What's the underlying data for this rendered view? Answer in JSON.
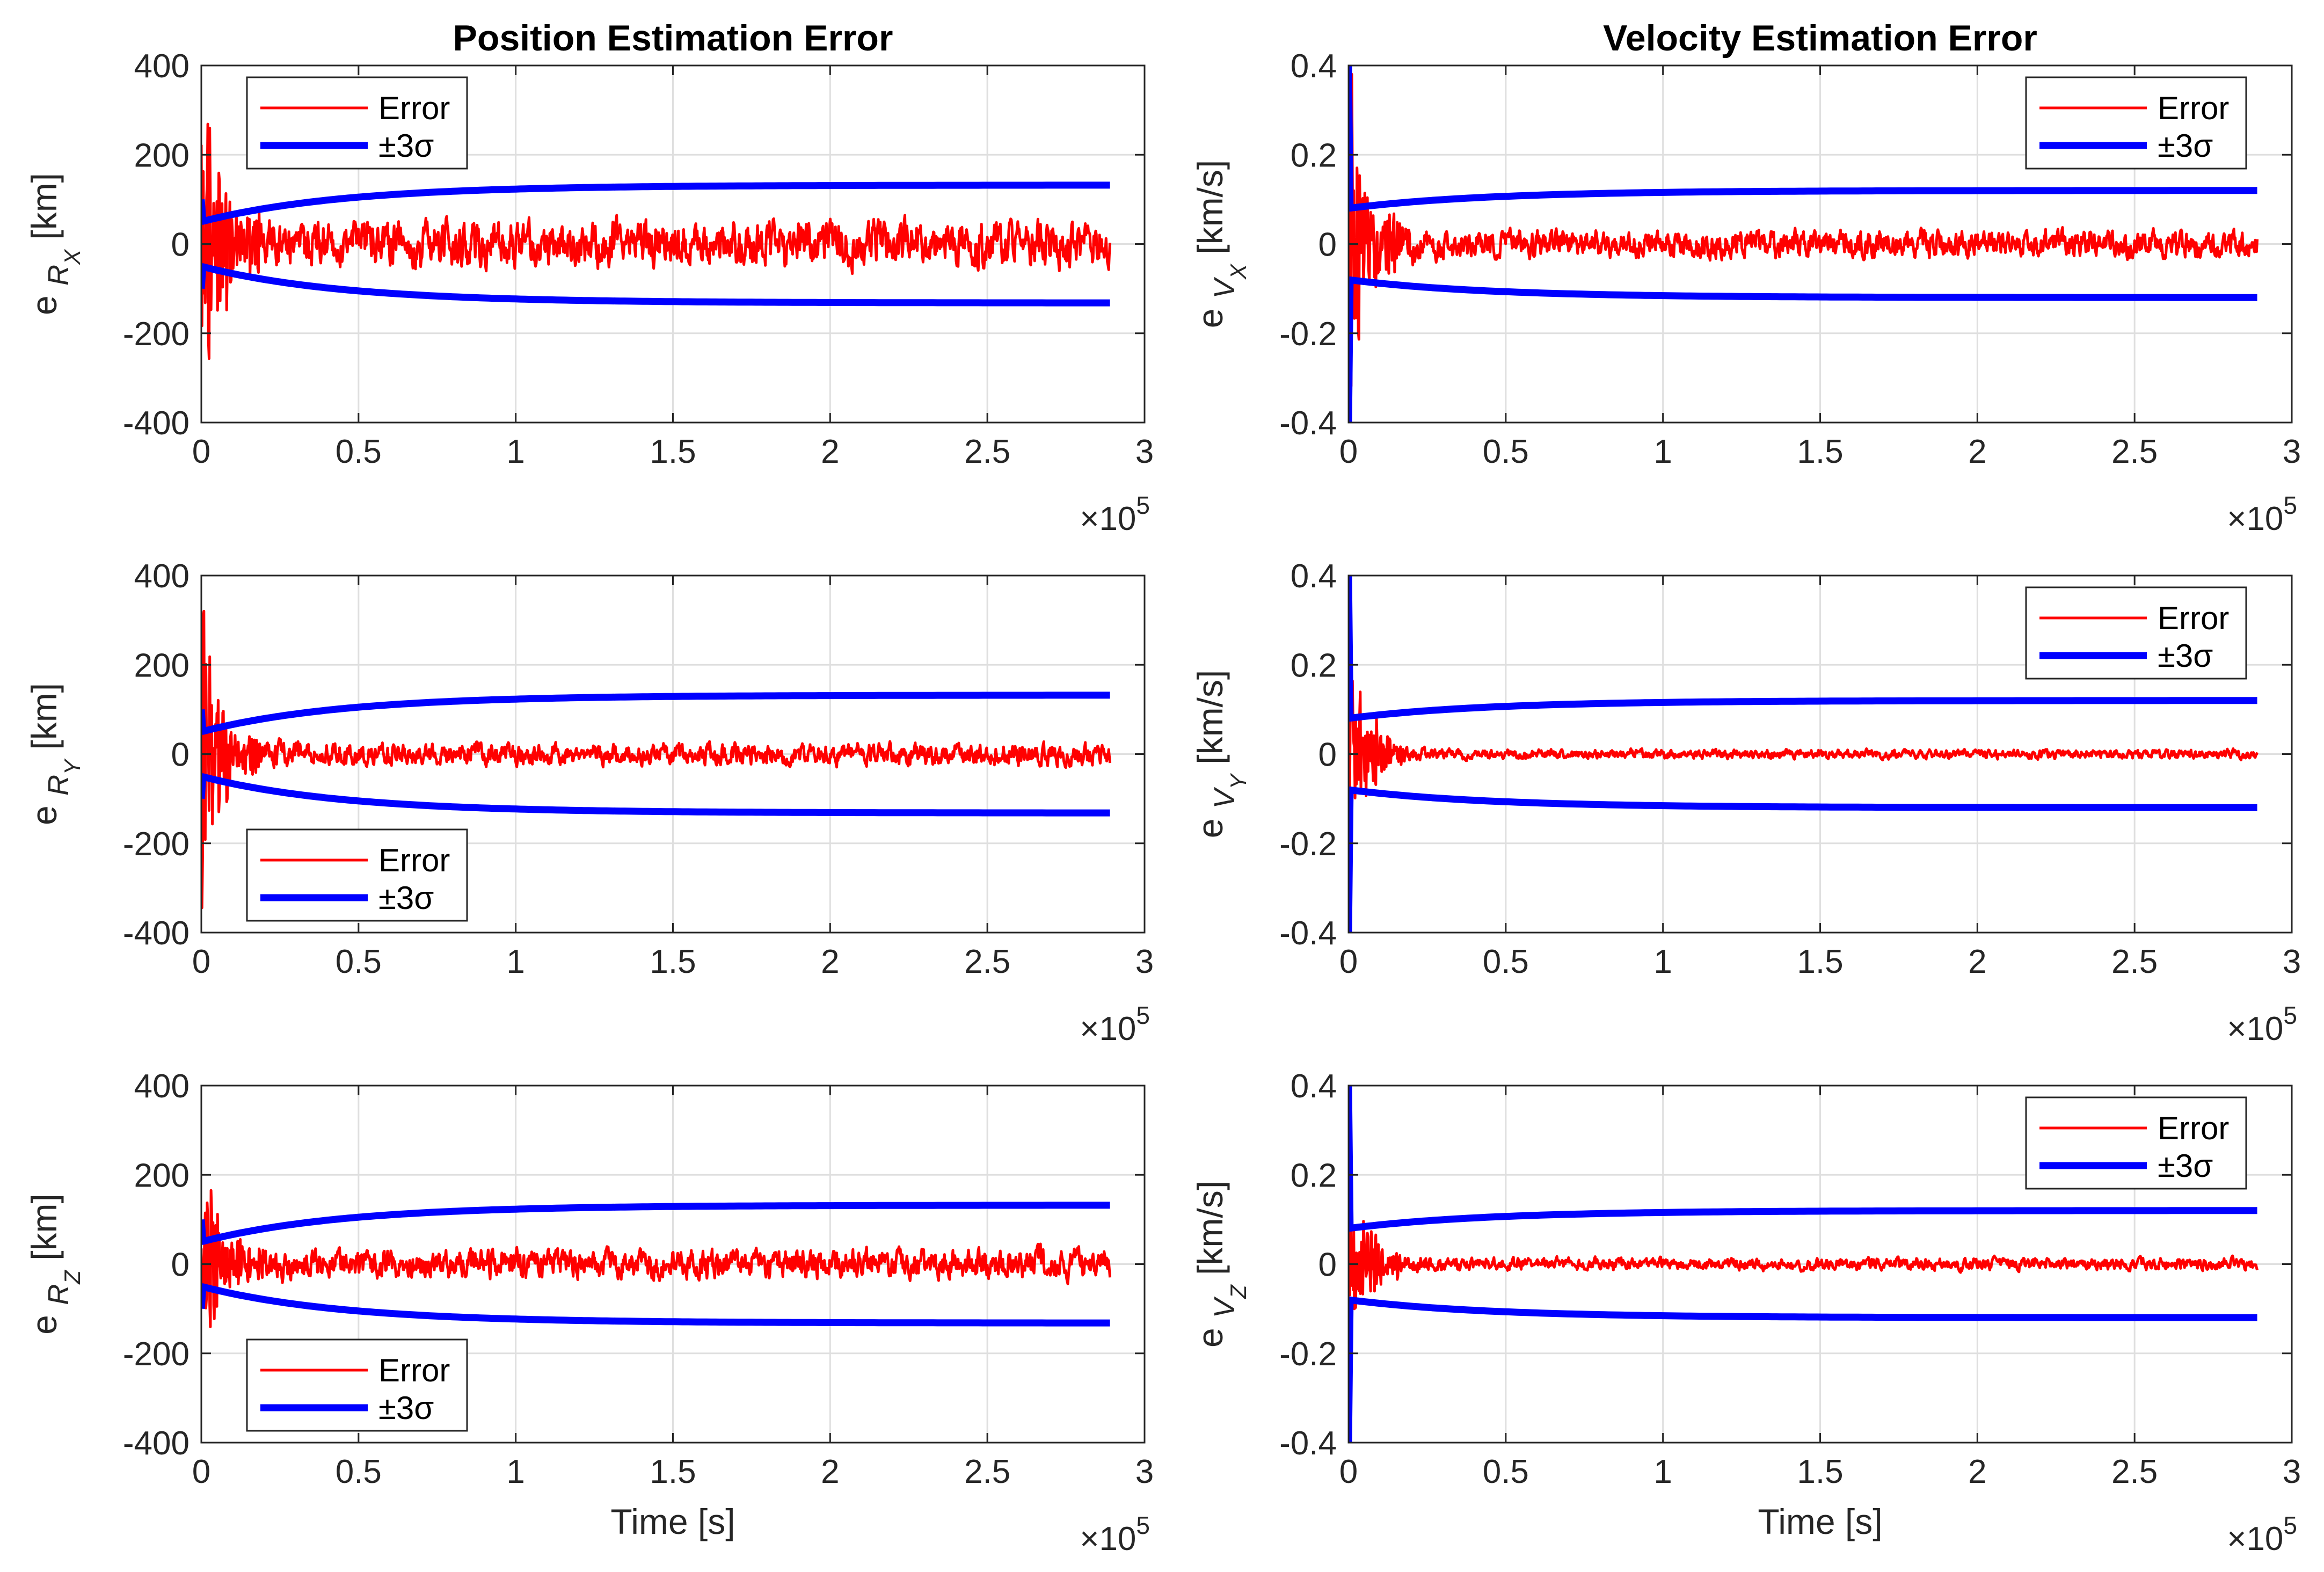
{
  "chart_data": [
    {
      "id": "rx",
      "type": "line",
      "title": "Position Estimation Error",
      "ylabel": {
        "base": "e",
        "sub": "R",
        "subsub": "X",
        "unit": "[km]"
      },
      "xlabel": "",
      "xlim": [
        0,
        3
      ],
      "ylim": [
        -400,
        400
      ],
      "xticks": [
        "0",
        "0.5",
        "1",
        "1.5",
        "2",
        "2.5",
        "3"
      ],
      "yticks": [
        "-400",
        "-200",
        "0",
        "200",
        "400"
      ],
      "xtick_values": [
        0,
        0.5,
        1,
        1.5,
        2,
        2.5,
        3
      ],
      "ytick_values": [
        -400,
        -200,
        0,
        200,
        400
      ],
      "exponent": {
        "base": "×10",
        "power": "5"
      },
      "legend": {
        "placement": "top-left",
        "entries": [
          "Error",
          "±3σ"
        ]
      },
      "sigma": {
        "start": 50,
        "end": 132,
        "spike": 100
      },
      "error": {
        "early_amp": 420,
        "late_amp": 60,
        "seed": 11
      },
      "series": [
        {
          "name": "Error",
          "color": "#ff0000"
        },
        {
          "name": "±3σ",
          "color": "#0000ff"
        }
      ]
    },
    {
      "id": "vx",
      "type": "line",
      "title": "Velocity Estimation Error",
      "ylabel": {
        "base": "e",
        "sub": "V",
        "subsub": "X",
        "unit": "[km/s]"
      },
      "xlabel": "",
      "xlim": [
        0,
        3
      ],
      "ylim": [
        -0.4,
        0.4
      ],
      "xticks": [
        "0",
        "0.5",
        "1",
        "1.5",
        "2",
        "2.5",
        "3"
      ],
      "yticks": [
        "-0.4",
        "-0.2",
        "0",
        "0.2",
        "0.4"
      ],
      "xtick_values": [
        0,
        0.5,
        1,
        1.5,
        2,
        2.5,
        3
      ],
      "ytick_values": [
        -0.4,
        -0.2,
        0,
        0.2,
        0.4
      ],
      "exponent": {
        "base": "×10",
        "power": "5"
      },
      "legend": {
        "placement": "top-right",
        "entries": [
          "Error",
          "±3σ"
        ]
      },
      "sigma": {
        "start": 0.08,
        "end": 0.12,
        "spike": 0.4
      },
      "error": {
        "early_amp": 0.42,
        "late_amp": 0.035,
        "seed": 23
      },
      "series": [
        {
          "name": "Error",
          "color": "#ff0000"
        },
        {
          "name": "±3σ",
          "color": "#0000ff"
        }
      ]
    },
    {
      "id": "ry",
      "type": "line",
      "title": "",
      "ylabel": {
        "base": "e",
        "sub": "R",
        "subsub": "Y",
        "unit": "[km]"
      },
      "xlabel": "",
      "xlim": [
        0,
        3
      ],
      "ylim": [
        -400,
        400
      ],
      "xticks": [
        "0",
        "0.5",
        "1",
        "1.5",
        "2",
        "2.5",
        "3"
      ],
      "yticks": [
        "-400",
        "-200",
        "0",
        "200",
        "400"
      ],
      "xtick_values": [
        0,
        0.5,
        1,
        1.5,
        2,
        2.5,
        3
      ],
      "ytick_values": [
        -400,
        -200,
        0,
        200,
        400
      ],
      "exponent": {
        "base": "×10",
        "power": "5"
      },
      "legend": {
        "placement": "bottom-left",
        "entries": [
          "Error",
          "±3σ"
        ]
      },
      "sigma": {
        "start": 50,
        "end": 132,
        "spike": 100
      },
      "error": {
        "early_amp": 380,
        "late_amp": 28,
        "seed": 37
      },
      "series": [
        {
          "name": "Error",
          "color": "#ff0000"
        },
        {
          "name": "±3σ",
          "color": "#0000ff"
        }
      ]
    },
    {
      "id": "vy",
      "type": "line",
      "title": "",
      "ylabel": {
        "base": "e",
        "sub": "V",
        "subsub": "Y",
        "unit": "[km/s]"
      },
      "xlabel": "",
      "xlim": [
        0,
        3
      ],
      "ylim": [
        -0.4,
        0.4
      ],
      "xticks": [
        "0",
        "0.5",
        "1",
        "1.5",
        "2",
        "2.5",
        "3"
      ],
      "yticks": [
        "-0.4",
        "-0.2",
        "0",
        "0.2",
        "0.4"
      ],
      "xtick_values": [
        0,
        0.5,
        1,
        1.5,
        2,
        2.5,
        3
      ],
      "ytick_values": [
        -0.4,
        -0.2,
        0,
        0.2,
        0.4
      ],
      "exponent": {
        "base": "×10",
        "power": "5"
      },
      "legend": {
        "placement": "top-right",
        "entries": [
          "Error",
          "±3σ"
        ]
      },
      "sigma": {
        "start": 0.08,
        "end": 0.12,
        "spike": 0.4
      },
      "error": {
        "early_amp": 0.3,
        "late_amp": 0.012,
        "seed": 41
      },
      "series": [
        {
          "name": "Error",
          "color": "#ff0000"
        },
        {
          "name": "±3σ",
          "color": "#0000ff"
        }
      ]
    },
    {
      "id": "rz",
      "type": "line",
      "title": "",
      "ylabel": {
        "base": "e",
        "sub": "R",
        "subsub": "Z",
        "unit": "[km]"
      },
      "xlabel": "Time [s]",
      "xlim": [
        0,
        3
      ],
      "ylim": [
        -400,
        400
      ],
      "xticks": [
        "0",
        "0.5",
        "1",
        "1.5",
        "2",
        "2.5",
        "3"
      ],
      "yticks": [
        "-400",
        "-200",
        "0",
        "200",
        "400"
      ],
      "xtick_values": [
        0,
        0.5,
        1,
        1.5,
        2,
        2.5,
        3
      ],
      "ytick_values": [
        -400,
        -200,
        0,
        200,
        400
      ],
      "exponent": {
        "base": "×10",
        "power": "5"
      },
      "legend": {
        "placement": "bottom-left",
        "entries": [
          "Error",
          "±3σ"
        ]
      },
      "sigma": {
        "start": 50,
        "end": 132,
        "spike": 100
      },
      "error": {
        "early_amp": 250,
        "late_amp": 38,
        "seed": 53
      },
      "series": [
        {
          "name": "Error",
          "color": "#ff0000"
        },
        {
          "name": "±3σ",
          "color": "#0000ff"
        }
      ]
    },
    {
      "id": "vz",
      "type": "line",
      "title": "",
      "ylabel": {
        "base": "e",
        "sub": "V",
        "subsub": "Z",
        "unit": "[km/s]"
      },
      "xlabel": "Time [s]",
      "xlim": [
        0,
        3
      ],
      "ylim": [
        -0.4,
        0.4
      ],
      "xticks": [
        "0",
        "0.5",
        "1",
        "1.5",
        "2",
        "2.5",
        "3"
      ],
      "yticks": [
        "-0.4",
        "-0.2",
        "0",
        "0.2",
        "0.4"
      ],
      "xtick_values": [
        0,
        0.5,
        1,
        1.5,
        2,
        2.5,
        3
      ],
      "ytick_values": [
        -0.4,
        -0.2,
        0,
        0.2,
        0.4
      ],
      "exponent": {
        "base": "×10",
        "power": "5"
      },
      "legend": {
        "placement": "top-right",
        "entries": [
          "Error",
          "±3σ"
        ]
      },
      "sigma": {
        "start": 0.08,
        "end": 0.12,
        "spike": 0.4
      },
      "error": {
        "early_amp": 0.25,
        "late_amp": 0.016,
        "seed": 67
      },
      "series": [
        {
          "name": "Error",
          "color": "#ff0000"
        },
        {
          "name": "±3σ",
          "color": "#0000ff"
        }
      ]
    }
  ],
  "time_end": 2.89
}
